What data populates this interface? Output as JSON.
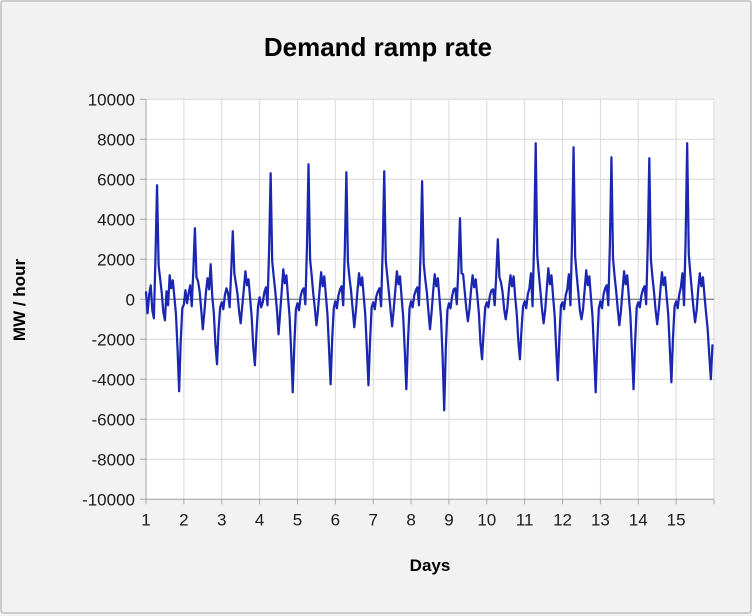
{
  "colors": {
    "line": "#1b27b2",
    "gridline": "#d9d9d9",
    "zero_axis": "#8c8c8c",
    "axis_line": "#a6a6a6",
    "tick_mark": "#a6a6a6",
    "plot_background": "#ffffff",
    "chart_background": "#f2f2f2",
    "text": "#1a1a1a"
  },
  "chart_data": {
    "type": "line",
    "title": "Demand ramp rate",
    "xlabel": "Days",
    "ylabel": "MW / hour",
    "xlim": [
      1,
      16
    ],
    "ylim": [
      -10000,
      10000
    ],
    "grid": true,
    "legend": false,
    "x_ticks": [
      1,
      2,
      3,
      4,
      5,
      6,
      7,
      8,
      9,
      10,
      11,
      12,
      13,
      14,
      15
    ],
    "x_tick_labels": [
      "1",
      "2",
      "3",
      "4",
      "5",
      "6",
      "7",
      "8",
      "9",
      "10",
      "11",
      "12",
      "13",
      "14",
      "15"
    ],
    "y_ticks": [
      10000,
      8000,
      6000,
      4000,
      2000,
      0,
      -2000,
      -4000,
      -6000,
      -8000,
      -10000
    ],
    "y_tick_labels": [
      "10000",
      "8000",
      "6000",
      "4000",
      "2000",
      "0",
      "-2000",
      "-4000",
      "-6000",
      "-8000",
      "-10000"
    ],
    "x_start_day": 1,
    "x_step_days": 0.0416667,
    "sampling": "hourly",
    "series": [
      {
        "name": "Demand ramp rate",
        "unit": "MW / hour",
        "values": [
          350,
          -700,
          250,
          700,
          -550,
          -950,
          2100,
          5700,
          1700,
          1000,
          300,
          -650,
          -1050,
          400,
          -300,
          1200,
          550,
          950,
          100,
          -750,
          -2500,
          -4600,
          -2100,
          -450,
          -250,
          450,
          -200,
          300,
          700,
          -350,
          1450,
          3550,
          1100,
          900,
          400,
          -500,
          -1500,
          -650,
          350,
          1050,
          500,
          1750,
          150,
          -700,
          -2250,
          -3250,
          -1500,
          -400,
          -150,
          -500,
          200,
          550,
          300,
          -400,
          1400,
          3400,
          1300,
          800,
          250,
          -600,
          -1200,
          -350,
          500,
          1400,
          700,
          1000,
          50,
          -900,
          -2400,
          -3300,
          -1700,
          -350,
          100,
          -400,
          -150,
          350,
          600,
          -300,
          2400,
          6300,
          1900,
          1100,
          350,
          -550,
          -1750,
          -700,
          400,
          1500,
          800,
          1200,
          100,
          -850,
          -2600,
          -4650,
          -2300,
          -500,
          -200,
          -550,
          150,
          450,
          550,
          -250,
          2550,
          6750,
          2000,
          1200,
          300,
          -450,
          -1300,
          -550,
          450,
          1350,
          650,
          1150,
          200,
          -750,
          -2450,
          -4250,
          -2000,
          -450,
          -100,
          -450,
          200,
          500,
          650,
          -300,
          2400,
          6350,
          1850,
          1050,
          400,
          -500,
          -1400,
          -600,
          400,
          1300,
          700,
          1100,
          150,
          -800,
          -2500,
          -4300,
          -2100,
          -400,
          -150,
          -500,
          150,
          400,
          550,
          -350,
          2450,
          6400,
          1900,
          1100,
          300,
          -550,
          -1350,
          -500,
          450,
          1400,
          750,
          1150,
          100,
          -850,
          -2550,
          -4500,
          -2200,
          -450,
          -100,
          -400,
          200,
          450,
          600,
          -300,
          2250,
          5900,
          1800,
          1000,
          350,
          -600,
          -1500,
          -650,
          400,
          1250,
          650,
          1050,
          50,
          -950,
          -2900,
          -5550,
          -2500,
          -550,
          -200,
          -450,
          150,
          500,
          550,
          -250,
          1600,
          4050,
          1300,
          1250,
          400,
          -450,
          -1100,
          -500,
          450,
          1200,
          600,
          1000,
          150,
          -700,
          -2200,
          -3000,
          -1600,
          -400,
          -150,
          -400,
          200,
          450,
          500,
          -300,
          1250,
          3000,
          1100,
          850,
          350,
          -500,
          -1000,
          -450,
          500,
          1200,
          650,
          1150,
          100,
          -750,
          -2100,
          -3000,
          -1500,
          -350,
          -100,
          -450,
          250,
          550,
          1300,
          -350,
          2900,
          7800,
          2200,
          1250,
          400,
          -500,
          -1200,
          -550,
          500,
          1550,
          750,
          1200,
          150,
          -800,
          -2500,
          -4050,
          -1900,
          -300,
          -150,
          -500,
          200,
          500,
          1250,
          -300,
          2850,
          7600,
          2150,
          1200,
          350,
          -550,
          -1000,
          -500,
          450,
          1450,
          700,
          1150,
          100,
          -850,
          -2700,
          -4650,
          -2200,
          -450,
          -100,
          -450,
          250,
          550,
          700,
          -300,
          2700,
          7100,
          2050,
          1150,
          400,
          -500,
          -1300,
          -600,
          400,
          1400,
          750,
          1200,
          150,
          -800,
          -2600,
          -4500,
          -2150,
          -400,
          -150,
          -400,
          200,
          500,
          650,
          -250,
          2650,
          7050,
          2000,
          1100,
          350,
          -550,
          -1250,
          -500,
          450,
          1350,
          700,
          1100,
          100,
          -750,
          -2450,
          -4150,
          -1950,
          -350,
          -100,
          -450,
          250,
          600,
          1300,
          -300,
          2950,
          7800,
          2250,
          1300,
          400,
          -450,
          -1150,
          -550,
          500,
          1300,
          650,
          1100,
          150,
          -700,
          -1500,
          -2800,
          -4000,
          -2300
        ]
      }
    ],
    "daily_morning_peaks": [
      5700,
      3550,
      3400,
      6300,
      6750,
      6350,
      6400,
      5900,
      4050,
      3000,
      7800,
      7600,
      7100,
      7050,
      7800
    ],
    "daily_evening_troughs": [
      -4600,
      -3250,
      -3300,
      -4650,
      -4250,
      -4300,
      -4500,
      -5550,
      -3000,
      -3000,
      -4050,
      -4650,
      -4500,
      -4150,
      -4000
    ]
  }
}
